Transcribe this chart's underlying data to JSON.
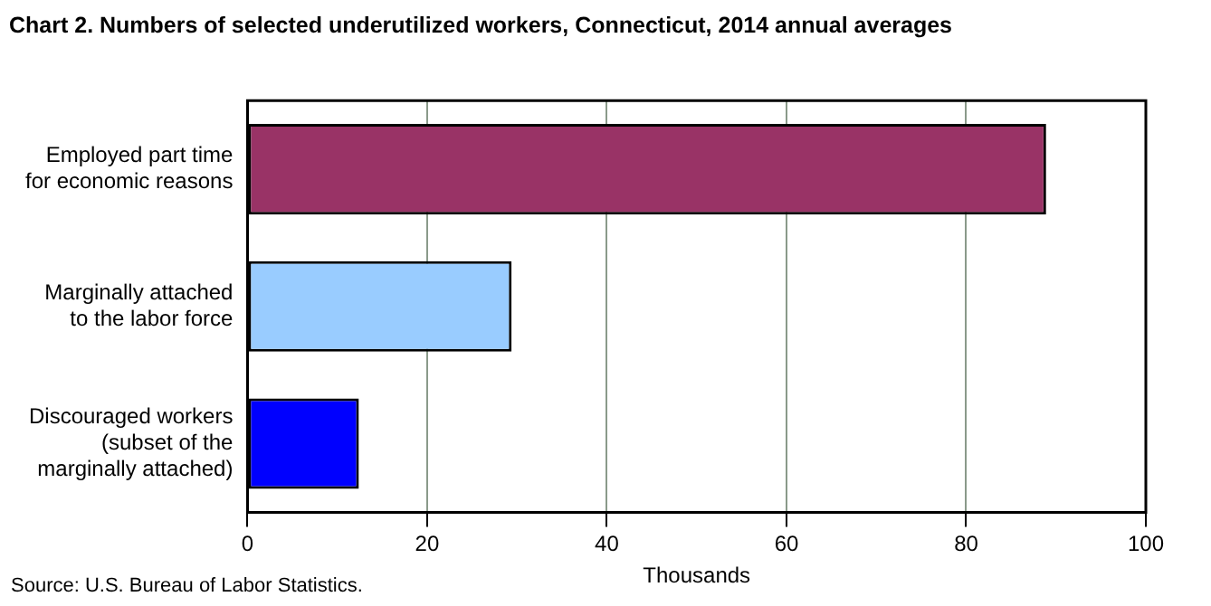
{
  "chart_data": {
    "type": "bar",
    "orientation": "horizontal",
    "title": "Chart 2. Numbers of selected underutilized workers, Connecticut, 2014 annual averages",
    "categories": [
      "Employed part time for economic reasons",
      "Marginally attached to the labor force",
      "Discouraged workers (subset of the marginally attached)"
    ],
    "values": [
      88.9,
      29.4,
      12.4
    ],
    "colors": [
      "#993366",
      "#99ccff",
      "#0000ff"
    ],
    "xlabel": "Thousands",
    "xlim": [
      0,
      100
    ],
    "xticks": [
      0,
      20,
      40,
      60,
      80,
      100
    ],
    "grid": "x",
    "legend": false,
    "annotations": [
      "Source: U.S. Bureau of Labor Statistics."
    ]
  }
}
